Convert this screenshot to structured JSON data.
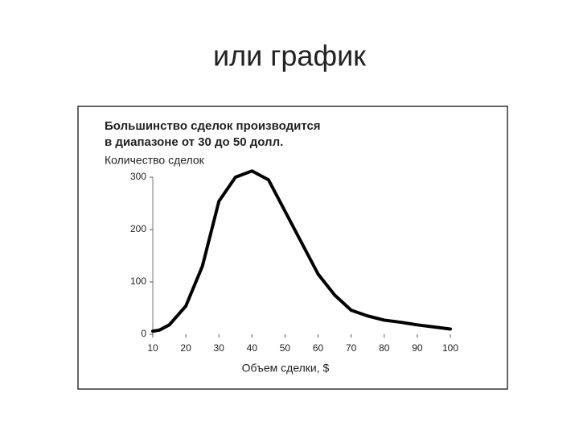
{
  "slide": {
    "title": "или график"
  },
  "chart_data": {
    "type": "line",
    "title": [
      "Большинство сделок производится",
      "в диапазоне от 30 до 50 долл."
    ],
    "y_label": "Количество сделок",
    "x_label": "Объем сделки, $",
    "x": [
      10,
      12,
      15,
      20,
      25,
      30,
      35,
      40,
      45,
      50,
      55,
      60,
      65,
      70,
      75,
      80,
      85,
      90,
      95,
      100
    ],
    "values": [
      6,
      8,
      18,
      54,
      130,
      254,
      300,
      312,
      295,
      235,
      175,
      115,
      75,
      46,
      35,
      27,
      23,
      18,
      14,
      10
    ],
    "color": "#000000",
    "xlim": [
      10,
      100
    ],
    "xticks": [
      10,
      20,
      30,
      40,
      50,
      60,
      70,
      80,
      90,
      100
    ],
    "ylim": [
      0,
      300
    ],
    "yticks": [
      0,
      100,
      200,
      300
    ],
    "grid": false
  }
}
